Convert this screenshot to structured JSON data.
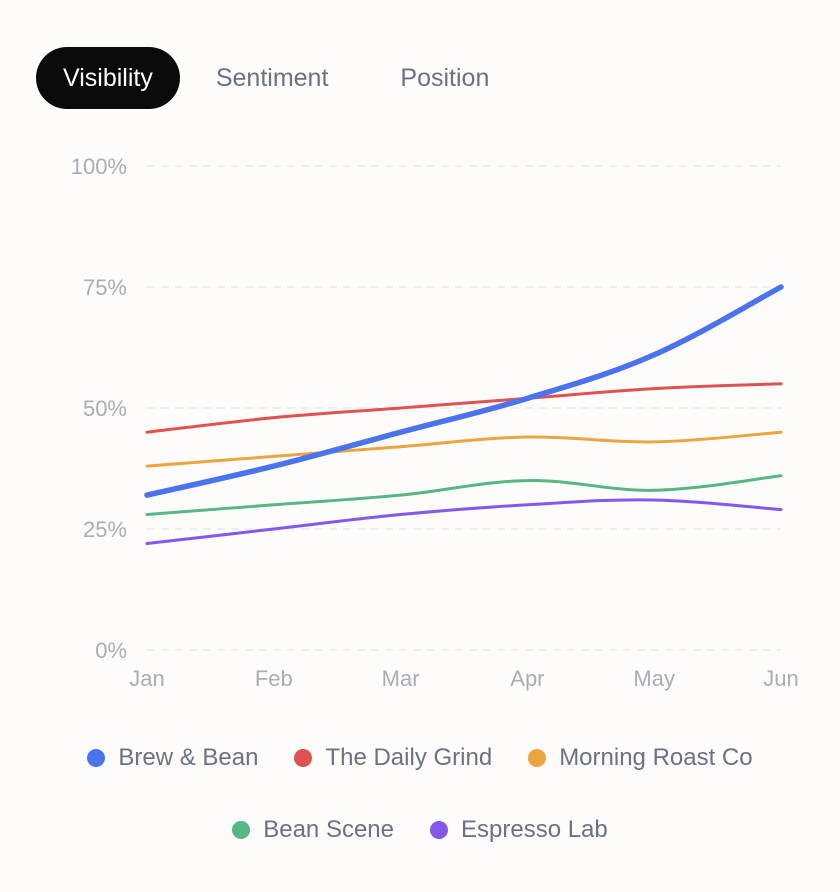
{
  "tabs": [
    {
      "label": "Visibility",
      "active": true
    },
    {
      "label": "Sentiment",
      "active": false
    },
    {
      "label": "Position",
      "active": false
    }
  ],
  "chart_data": {
    "type": "line",
    "title": "",
    "xlabel": "",
    "ylabel": "",
    "categories": [
      "Jan",
      "Feb",
      "Mar",
      "Apr",
      "May",
      "Jun"
    ],
    "y_ticks": [
      "0%",
      "25%",
      "50%",
      "75%",
      "100%"
    ],
    "ylim": [
      0,
      100
    ],
    "grid": true,
    "legend_position": "bottom",
    "series": [
      {
        "name": "Brew & Bean",
        "color": "#4a74ee",
        "values": [
          32,
          38,
          45,
          52,
          61,
          75
        ],
        "emphasis": true
      },
      {
        "name": "The Daily Grind",
        "color": "#e0524f",
        "values": [
          45,
          48,
          50,
          52,
          54,
          55
        ]
      },
      {
        "name": "Morning Roast Co",
        "color": "#eba43f",
        "values": [
          38,
          40,
          42,
          44,
          43,
          45
        ]
      },
      {
        "name": "Bean Scene",
        "color": "#56b685",
        "values": [
          28,
          30,
          32,
          35,
          33,
          36
        ]
      },
      {
        "name": "Espresso Lab",
        "color": "#8458ea",
        "values": [
          22,
          25,
          28,
          30,
          31,
          29
        ]
      }
    ]
  },
  "colors": {
    "grid": "#e9e9ec",
    "axis_text": "#a8adb6"
  }
}
